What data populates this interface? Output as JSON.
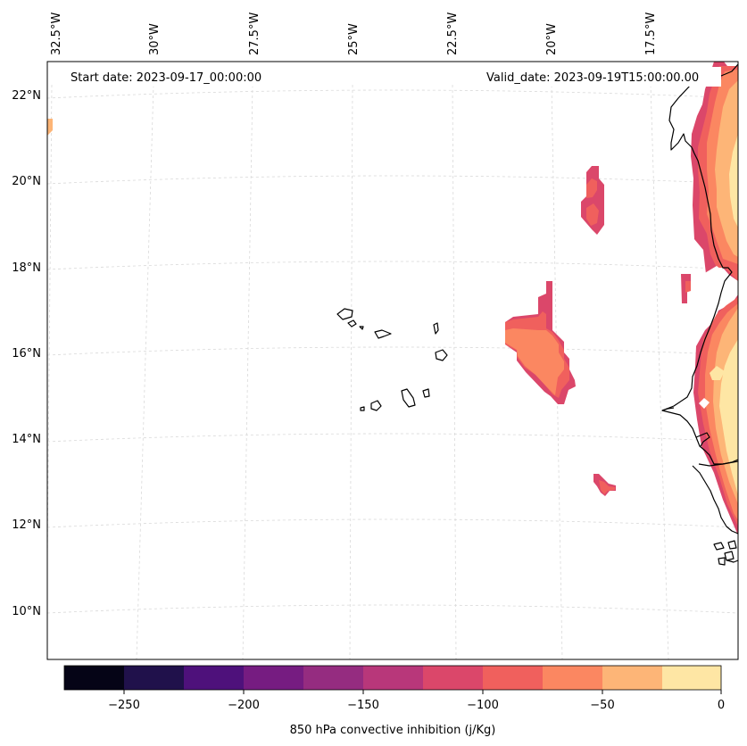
{
  "annotations": {
    "start_date": "Start date: 2023-09-17_00:00:00",
    "valid_date": "Valid_date: 2023-09-19T15:00:00.00"
  },
  "longitude_labels": [
    "32.5°W",
    "30°W",
    "27.5°W",
    "25°W",
    "22.5°W",
    "20°W",
    "17.5°W"
  ],
  "latitude_labels": [
    "22°N",
    "20°N",
    "18°N",
    "16°N",
    "14°N",
    "12°N",
    "10°N"
  ],
  "colorbar": {
    "label": "850 hPa convective inhibition (j/Kg)",
    "tick_labels": [
      "−250",
      "−200",
      "−150",
      "−100",
      "−50",
      "0"
    ],
    "colors": [
      "#050416",
      "#20114b",
      "#4e117b",
      "#761c81",
      "#952c80",
      "#b8377a",
      "#db476a",
      "#f0605d",
      "#fb8761",
      "#fdb577",
      "#fee6a4"
    ]
  },
  "map_colors": {
    "level_-125": "#db476a",
    "level_-100": "#f0605d",
    "level_-75": "#fb8761",
    "level_-50": "#fdb577",
    "level_-25": "#fee6a4",
    "coastline": "#000000",
    "gridline": "#d9d9d9"
  }
}
